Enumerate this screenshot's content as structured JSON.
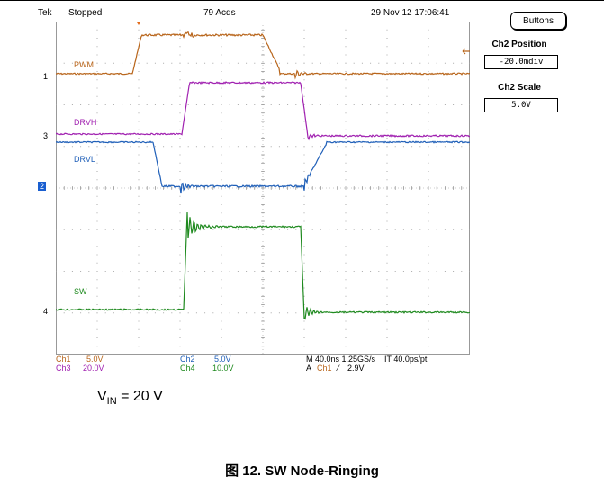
{
  "header": {
    "brand": "Tek",
    "status": "Stopped",
    "acqs": "79 Acqs",
    "datetime": "29 Nov 12 17:06:41"
  },
  "side_panel": {
    "buttons_label": "Buttons",
    "position_title": "Ch2 Position",
    "position_value": "-20.0mdiv",
    "scale_title": "Ch2 Scale",
    "scale_value": "5.0V"
  },
  "channel_markers": [
    "1",
    "3",
    "2",
    "4"
  ],
  "traces": [
    {
      "name": "PWM",
      "color": "#b8651b"
    },
    {
      "name": "DRVH",
      "color": "#a020b0"
    },
    {
      "name": "DRVL",
      "color": "#1f5fb8"
    },
    {
      "name": "SW",
      "color": "#1f8a1f"
    }
  ],
  "footer": {
    "ch1_name": "Ch1",
    "ch1_val": "5.0V",
    "ch3_name": "Ch3",
    "ch3_val": "20.0V",
    "ch2_name": "Ch2",
    "ch2_val": "5.0V",
    "ch4_name": "Ch4",
    "ch4_val": "10.0V",
    "timebase": "M 40.0ns 1.25GS/s    IT 40.0ps/pt",
    "trigger_prefix": "A",
    "trigger_ch": "Ch1",
    "trigger_symbol": "⁄",
    "trigger_level": "2.9V"
  },
  "vin": {
    "v": "V",
    "sub": "IN",
    "rest": " = 20 V"
  },
  "caption": "图 12. SW Node-Ringing",
  "colors": {
    "ch1": "#b8651b",
    "ch2": "#1f5fb8",
    "ch3": "#a020b0",
    "ch4": "#1f8a1f",
    "marker_sel": "#1a5fd0"
  }
}
